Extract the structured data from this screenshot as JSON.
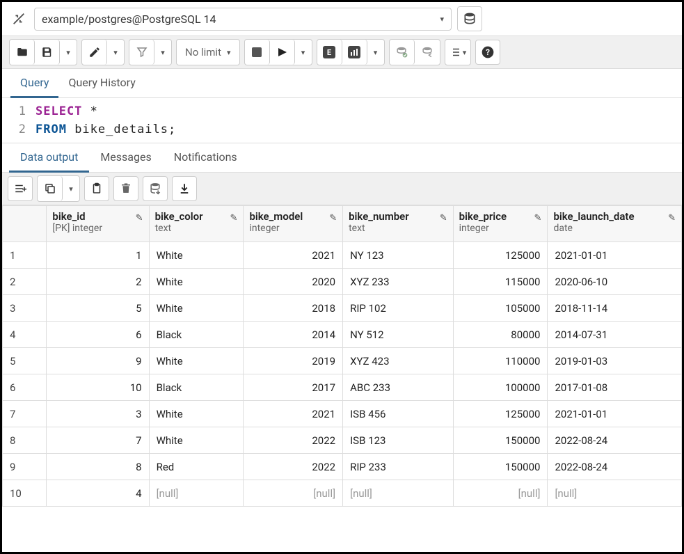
{
  "connection": "example/postgres@PostgreSQL 14",
  "limit_label": "No limit",
  "query_tabs": {
    "query": "Query",
    "history": "Query History"
  },
  "sql": {
    "lines": [
      "1",
      "2"
    ],
    "l1_kw": "SELECT",
    "l1_rest": " *",
    "l2_kw": "FROM",
    "l2_rest": " bike_details;"
  },
  "output_tabs": {
    "data": "Data output",
    "messages": "Messages",
    "notifications": "Notifications"
  },
  "columns": [
    {
      "name": "bike_id",
      "type": "[PK] integer",
      "align": "num",
      "w": 130
    },
    {
      "name": "bike_color",
      "type": "text",
      "align": "txt",
      "w": 120
    },
    {
      "name": "bike_model",
      "type": "integer",
      "align": "num",
      "w": 126
    },
    {
      "name": "bike_number",
      "type": "text",
      "align": "txt",
      "w": 140
    },
    {
      "name": "bike_price",
      "type": "integer",
      "align": "num",
      "w": 120
    },
    {
      "name": "bike_launch_date",
      "type": "date",
      "align": "txt",
      "w": 170
    }
  ],
  "rows": [
    {
      "n": "1",
      "c": [
        "1",
        "White",
        "2021",
        "NY 123",
        "125000",
        "2021-01-01"
      ]
    },
    {
      "n": "2",
      "c": [
        "2",
        "White",
        "2020",
        "XYZ 233",
        "115000",
        "2020-06-10"
      ]
    },
    {
      "n": "3",
      "c": [
        "5",
        "White",
        "2018",
        "RIP 102",
        "105000",
        "2018-11-14"
      ]
    },
    {
      "n": "4",
      "c": [
        "6",
        "Black",
        "2014",
        "NY 512",
        "80000",
        "2014-07-31"
      ]
    },
    {
      "n": "5",
      "c": [
        "9",
        "White",
        "2019",
        "XYZ 423",
        "110000",
        "2019-01-03"
      ]
    },
    {
      "n": "6",
      "c": [
        "10",
        "Black",
        "2017",
        "ABC 233",
        "100000",
        "2017-01-08"
      ]
    },
    {
      "n": "7",
      "c": [
        "3",
        "White",
        "2021",
        "ISB 456",
        "125000",
        "2021-01-01"
      ]
    },
    {
      "n": "8",
      "c": [
        "7",
        "White",
        "2022",
        "ISB 123",
        "150000",
        "2022-08-24"
      ]
    },
    {
      "n": "9",
      "c": [
        "8",
        "Red",
        "2022",
        "RIP 233",
        "150000",
        "2022-08-24"
      ]
    },
    {
      "n": "10",
      "c": [
        "4",
        null,
        null,
        null,
        null,
        null
      ]
    }
  ],
  "null_text": "[null]"
}
